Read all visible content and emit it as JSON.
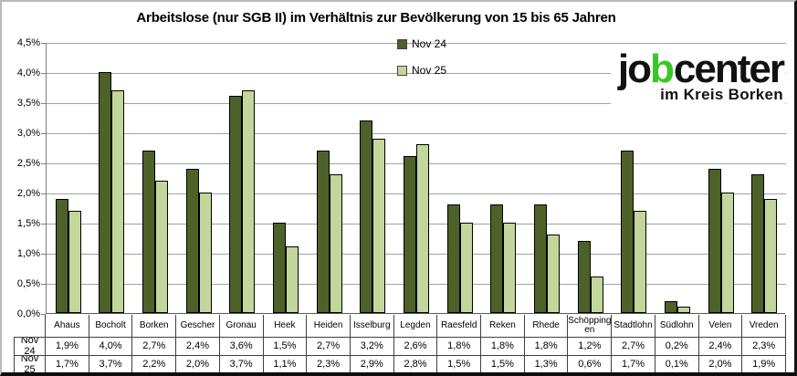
{
  "title": "Arbeitslose (nur SGB II) im Verhältnis zur Bevölkerung von 15 bis 65 Jahren",
  "colors": {
    "nov24": "#4D6128",
    "nov25": "#C3D69B",
    "bar_border": "#000000",
    "gridline": "#A3A3A3",
    "axis": "#7F7F7F",
    "table_border": "#404040",
    "logo_green": "#3BC52A",
    "logo_black": "#121212"
  },
  "legend": {
    "items": [
      {
        "label": "Nov 24",
        "color": "#4D6128"
      },
      {
        "label": "Nov 25",
        "color": "#C3D69B"
      }
    ]
  },
  "logo": {
    "part1": "jo",
    "part2": "b",
    "part3": "center",
    "subtitle": "im Kreis Borken"
  },
  "y_axis": {
    "labels": [
      "4,5%",
      "4,0%",
      "3,5%",
      "3,0%",
      "2,5%",
      "2,0%",
      "1,5%",
      "1,0%",
      "0,5%",
      "0,0%"
    ]
  },
  "chart_data": {
    "type": "bar",
    "title": "Arbeitslose (nur SGB II) im Verhältnis zur Bevölkerung von 15 bis 65 Jahren",
    "categories": [
      "Ahaus",
      "Bocholt",
      "Borken",
      "Gescher",
      "Gronau",
      "Heek",
      "Heiden",
      "Isselburg",
      "Legden",
      "Raesfeld",
      "Reken",
      "Rhede",
      "Schöppingen",
      "Stadtlohn",
      "Südlohn",
      "Velen",
      "Vreden"
    ],
    "series": [
      {
        "name": "Nov 24",
        "color": "#4D6128",
        "values": [
          1.9,
          4.0,
          2.7,
          2.4,
          3.6,
          1.5,
          2.7,
          3.2,
          2.6,
          1.8,
          1.8,
          1.8,
          1.2,
          2.7,
          0.2,
          2.4,
          2.3
        ]
      },
      {
        "name": "Nov 25",
        "color": "#C3D69B",
        "values": [
          1.7,
          3.7,
          2.2,
          2.0,
          3.7,
          1.1,
          2.3,
          2.9,
          2.8,
          1.5,
          1.5,
          1.3,
          0.6,
          1.7,
          0.1,
          2.0,
          1.9
        ]
      }
    ],
    "xlabel": "",
    "ylabel": "",
    "ylim": [
      0,
      4.5
    ],
    "ytick_step": 0.5,
    "grid": true,
    "legend_position": "top-center"
  },
  "table": {
    "column_headers": [
      "Ahaus",
      "Bocholt",
      "Borken",
      "Gescher",
      "Gronau",
      "Heek",
      "Heiden",
      "Isselburg",
      "Legden",
      "Raesfeld",
      "Reken",
      "Rhede",
      "Schöpping​en",
      "Stadtlohn",
      "Südlohn",
      "Velen",
      "Vreden"
    ],
    "row_headers": [
      "Nov 24",
      "Nov 25"
    ],
    "rows": [
      [
        "1,9%",
        "4,0%",
        "2,7%",
        "2,4%",
        "3,6%",
        "1,5%",
        "2,7%",
        "3,2%",
        "2,6%",
        "1,8%",
        "1,8%",
        "1,8%",
        "1,2%",
        "2,7%",
        "0,2%",
        "2,4%",
        "2,3%"
      ],
      [
        "1,7%",
        "3,7%",
        "2,2%",
        "2,0%",
        "3,7%",
        "1,1%",
        "2,3%",
        "2,9%",
        "2,8%",
        "1,5%",
        "1,5%",
        "1,3%",
        "0,6%",
        "1,7%",
        "0,1%",
        "2,0%",
        "1,9%"
      ]
    ]
  }
}
